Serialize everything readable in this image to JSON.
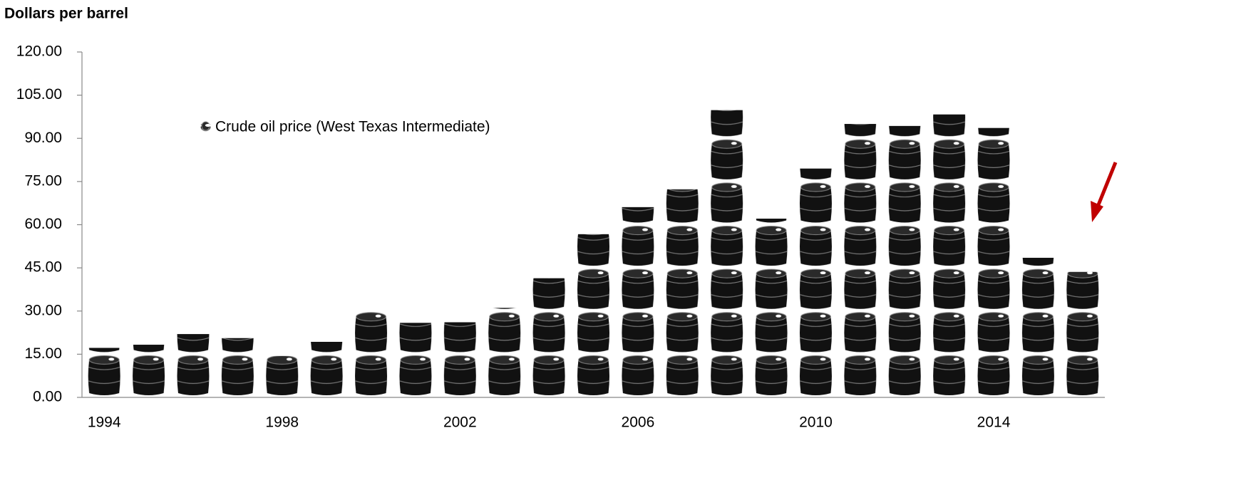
{
  "chart_data": {
    "type": "bar",
    "ylabel": "Dollars per barrel",
    "categories": [
      "1994",
      null,
      null,
      null,
      "1998",
      null,
      null,
      null,
      "2002",
      null,
      null,
      null,
      "2006",
      null,
      null,
      null,
      "2010",
      null,
      null,
      null,
      "2014",
      null,
      null
    ],
    "series": [
      {
        "name": "Crude oil price (West Texas Intermediate)",
        "color": "#111111",
        "values": [
          17.2,
          18.3,
          22.0,
          20.6,
          14.4,
          19.3,
          30.0,
          25.9,
          26.1,
          31.1,
          41.4,
          56.7,
          66.1,
          72.3,
          99.8,
          62.1,
          79.5,
          95.0,
          94.3,
          98.3,
          93.6,
          48.5,
          43.6
        ]
      }
    ],
    "ylim": [
      0,
      120
    ],
    "yticks": [
      {
        "value": 0,
        "label": "0.00"
      },
      {
        "value": 15,
        "label": "15.00"
      },
      {
        "value": 30,
        "label": "30.00"
      },
      {
        "value": 45,
        "label": "45.00"
      },
      {
        "value": 60,
        "label": "60.00"
      },
      {
        "value": 75,
        "label": "75.00"
      },
      {
        "value": 90,
        "label": "90.00"
      },
      {
        "value": 105,
        "label": "105.00"
      },
      {
        "value": 120,
        "label": "120.00"
      }
    ],
    "barrel_unit": 15,
    "legend": "upper left"
  }
}
